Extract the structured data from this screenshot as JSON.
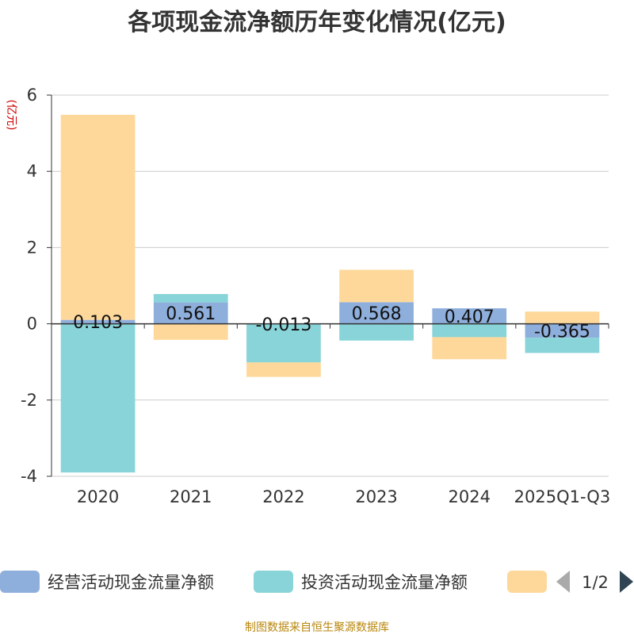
{
  "chart_data": {
    "type": "bar",
    "stacked": true,
    "title": "各项现金流净额历年变化情况(亿元)",
    "ylabel": "(亿元)",
    "categories": [
      "2020",
      "2021",
      "2022",
      "2023",
      "2024",
      "2025Q1-Q3"
    ],
    "ylim": [
      -4,
      6
    ],
    "yticks": [
      6,
      4,
      2,
      0,
      -2,
      -4
    ],
    "grid": true,
    "series": [
      {
        "name": "经营活动现金流量净额",
        "color": "#8eaedb",
        "values": [
          0.103,
          0.561,
          -0.013,
          0.568,
          0.407,
          -0.365
        ]
      },
      {
        "name": "投资活动现金流量净额",
        "color": "#88d4d8",
        "values": [
          -3.9,
          0.22,
          -1.0,
          -0.44,
          -0.35,
          -0.4
        ]
      },
      {
        "name": "",
        "color": "#fdd89a",
        "values": [
          5.38,
          -0.42,
          -0.38,
          0.85,
          -0.58,
          0.32
        ]
      }
    ],
    "data_labels": [
      "0.103",
      "0.561",
      "-0.013",
      "0.568",
      "0.407",
      "-0.365"
    ],
    "legend": {
      "placement": "bottom",
      "page": "1/2"
    }
  },
  "footer": {
    "source": "制图数据来自恒生聚源数据库"
  }
}
